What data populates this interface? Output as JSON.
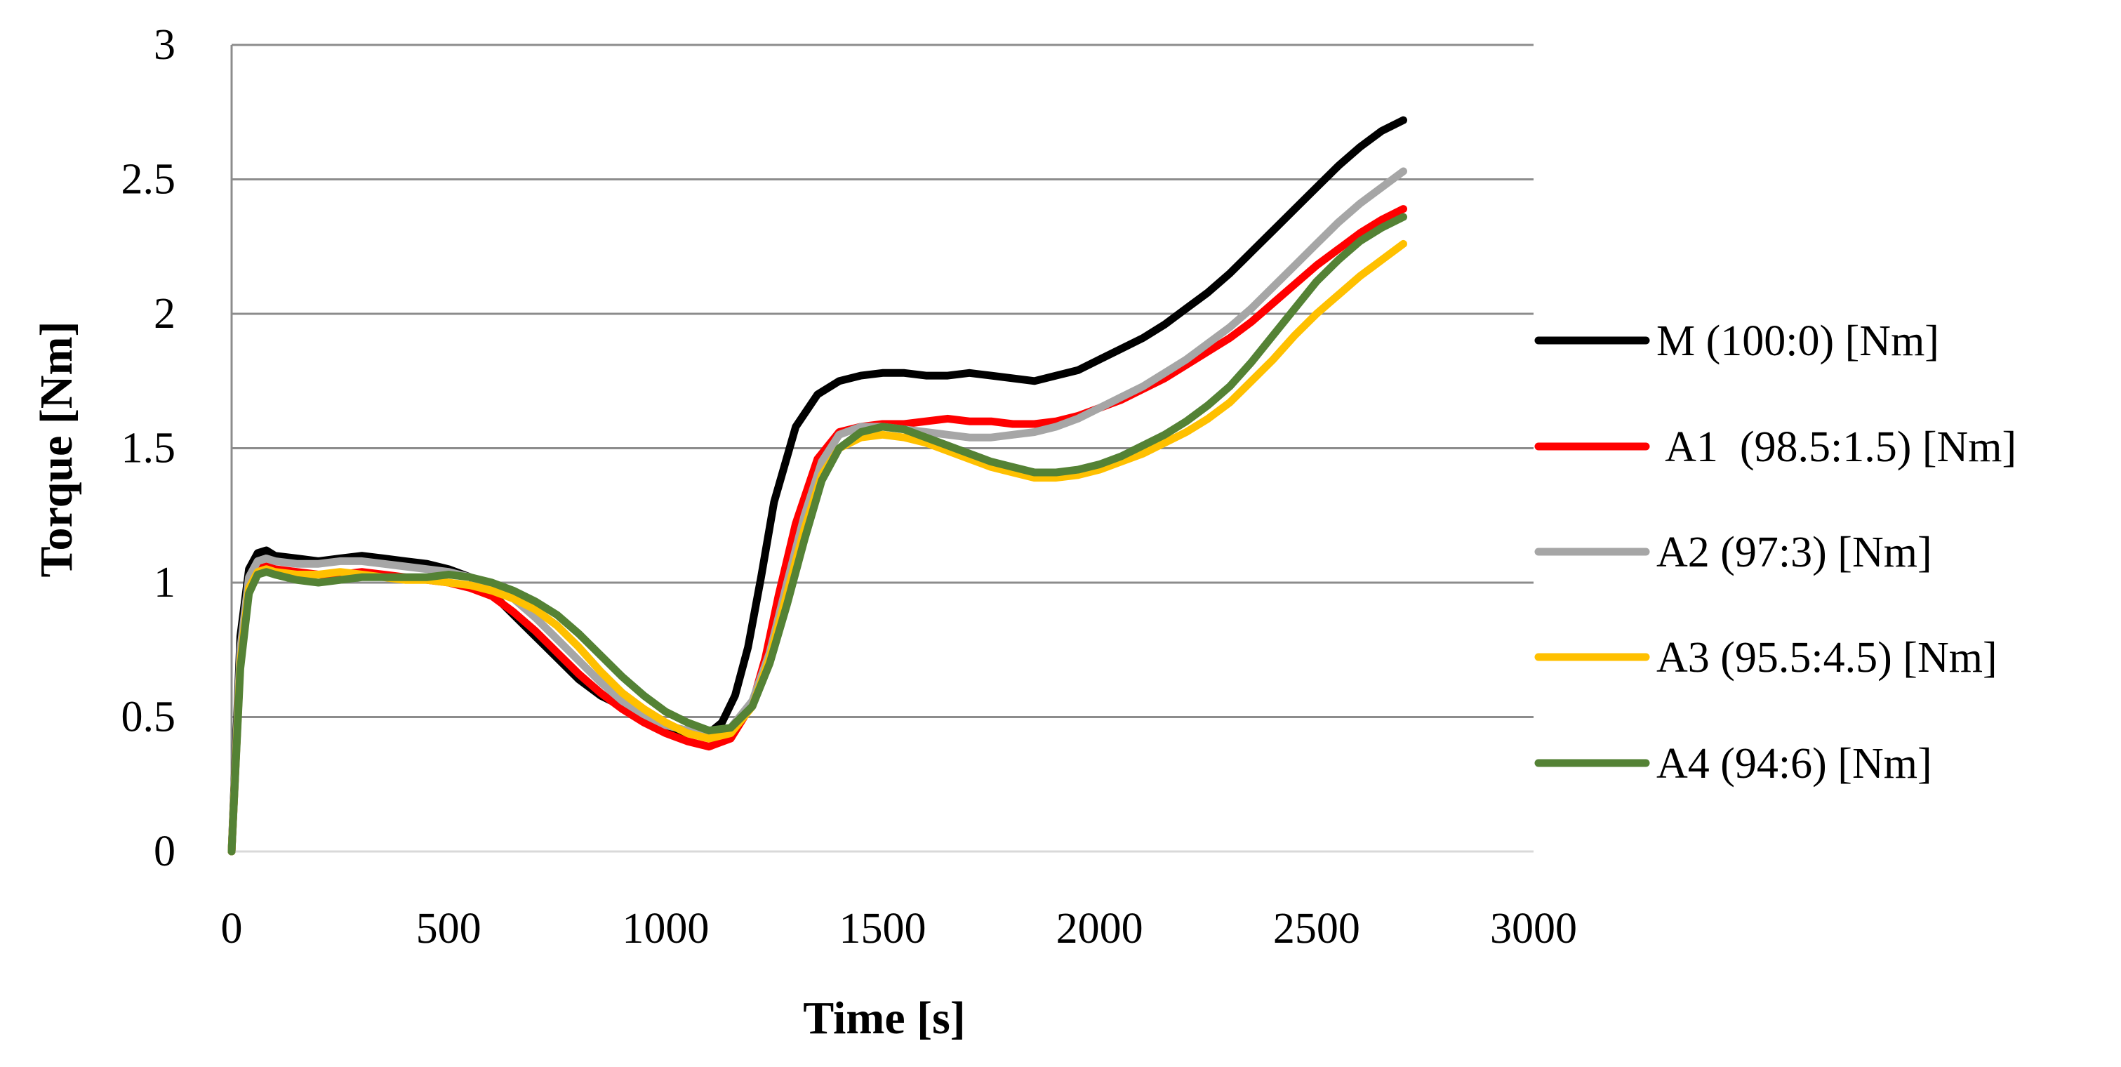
{
  "chart_data": {
    "type": "line",
    "title": "",
    "xlabel": "Time [s]",
    "ylabel": "Torque [Nm]",
    "xlim": [
      0,
      3000
    ],
    "ylim": [
      0,
      3
    ],
    "xticks": [
      0,
      500,
      1000,
      1500,
      2000,
      2500,
      3000
    ],
    "yticks": [
      0,
      0.5,
      1,
      1.5,
      2,
      2.5,
      3
    ],
    "xtick_labels": [
      "0",
      "500",
      "1000",
      "1500",
      "2000",
      "2500",
      "3000"
    ],
    "ytick_labels": [
      "0",
      "0.5",
      "1",
      "1.5",
      "2",
      "2.5",
      "3"
    ],
    "grid": "horizontal",
    "legend_position": "right",
    "series": [
      {
        "name": "M (100:0) [Nm]",
        "legend_label": "M (100:0) [Nm]",
        "color": "#000000",
        "x": [
          0,
          20,
          40,
          60,
          80,
          100,
          150,
          200,
          250,
          300,
          350,
          400,
          450,
          500,
          550,
          600,
          650,
          700,
          750,
          800,
          850,
          900,
          950,
          1000,
          1050,
          1100,
          1130,
          1160,
          1190,
          1220,
          1250,
          1300,
          1350,
          1400,
          1450,
          1500,
          1550,
          1600,
          1650,
          1700,
          1750,
          1800,
          1850,
          1900,
          1950,
          2000,
          2050,
          2100,
          2150,
          2200,
          2250,
          2300,
          2350,
          2400,
          2450,
          2500,
          2550,
          2600,
          2650,
          2700
        ],
        "values": [
          0,
          0.8,
          1.05,
          1.11,
          1.12,
          1.1,
          1.09,
          1.08,
          1.09,
          1.1,
          1.09,
          1.08,
          1.07,
          1.05,
          1.02,
          0.96,
          0.88,
          0.8,
          0.72,
          0.64,
          0.58,
          0.54,
          0.5,
          0.46,
          0.44,
          0.44,
          0.48,
          0.58,
          0.76,
          1.02,
          1.3,
          1.58,
          1.7,
          1.75,
          1.77,
          1.78,
          1.78,
          1.77,
          1.77,
          1.78,
          1.77,
          1.76,
          1.75,
          1.77,
          1.79,
          1.83,
          1.87,
          1.91,
          1.96,
          2.02,
          2.08,
          2.15,
          2.23,
          2.31,
          2.39,
          2.47,
          2.55,
          2.62,
          2.68,
          2.72
        ]
      },
      {
        "name": "A1 (98.5:1.5) [Nm]",
        "legend_label": " A1  (98.5:1.5) [Nm]",
        "color": "#ff0000",
        "x": [
          0,
          20,
          40,
          60,
          80,
          100,
          150,
          200,
          250,
          300,
          350,
          400,
          450,
          500,
          550,
          600,
          650,
          700,
          750,
          800,
          850,
          900,
          950,
          1000,
          1050,
          1100,
          1150,
          1200,
          1230,
          1260,
          1300,
          1350,
          1400,
          1450,
          1500,
          1550,
          1600,
          1650,
          1700,
          1750,
          1800,
          1850,
          1900,
          1950,
          2000,
          2050,
          2100,
          2150,
          2200,
          2250,
          2300,
          2350,
          2400,
          2450,
          2500,
          2550,
          2600,
          2650,
          2700
        ],
        "values": [
          0,
          0.7,
          0.98,
          1.05,
          1.06,
          1.05,
          1.04,
          1.03,
          1.03,
          1.04,
          1.03,
          1.02,
          1.01,
          1.0,
          0.98,
          0.95,
          0.89,
          0.82,
          0.74,
          0.66,
          0.59,
          0.53,
          0.48,
          0.44,
          0.41,
          0.39,
          0.42,
          0.55,
          0.72,
          0.95,
          1.22,
          1.46,
          1.56,
          1.58,
          1.59,
          1.59,
          1.6,
          1.61,
          1.6,
          1.6,
          1.59,
          1.59,
          1.6,
          1.62,
          1.65,
          1.68,
          1.72,
          1.76,
          1.81,
          1.86,
          1.91,
          1.97,
          2.04,
          2.11,
          2.18,
          2.24,
          2.3,
          2.35,
          2.39
        ]
      },
      {
        "name": "A2 (97:3) [Nm]",
        "legend_label": "A2 (97:3) [Nm]",
        "color": "#a6a6a6",
        "x": [
          0,
          20,
          40,
          60,
          80,
          100,
          150,
          200,
          250,
          300,
          350,
          400,
          450,
          500,
          550,
          600,
          650,
          700,
          750,
          800,
          850,
          900,
          950,
          1000,
          1050,
          1100,
          1150,
          1200,
          1240,
          1280,
          1320,
          1360,
          1400,
          1450,
          1500,
          1550,
          1600,
          1650,
          1700,
          1750,
          1800,
          1850,
          1900,
          1950,
          2000,
          2050,
          2100,
          2150,
          2200,
          2250,
          2300,
          2350,
          2400,
          2450,
          2500,
          2550,
          2600,
          2650,
          2700
        ],
        "values": [
          0,
          0.75,
          1.02,
          1.08,
          1.09,
          1.08,
          1.07,
          1.07,
          1.08,
          1.08,
          1.07,
          1.06,
          1.05,
          1.04,
          1.02,
          0.99,
          0.94,
          0.87,
          0.79,
          0.71,
          0.63,
          0.56,
          0.51,
          0.47,
          0.45,
          0.44,
          0.46,
          0.56,
          0.74,
          1.0,
          1.25,
          1.45,
          1.55,
          1.58,
          1.58,
          1.57,
          1.56,
          1.55,
          1.54,
          1.54,
          1.55,
          1.56,
          1.58,
          1.61,
          1.65,
          1.69,
          1.73,
          1.78,
          1.83,
          1.89,
          1.95,
          2.02,
          2.1,
          2.18,
          2.26,
          2.34,
          2.41,
          2.47,
          2.53
        ]
      },
      {
        "name": "A3 (95.5:4.5) [Nm]",
        "legend_label": "A3 (95.5:4.5) [Nm]",
        "color": "#ffc000",
        "x": [
          0,
          20,
          40,
          60,
          80,
          100,
          150,
          200,
          250,
          300,
          350,
          400,
          450,
          500,
          550,
          600,
          650,
          700,
          750,
          800,
          850,
          900,
          950,
          1000,
          1050,
          1100,
          1150,
          1200,
          1240,
          1280,
          1320,
          1360,
          1400,
          1450,
          1500,
          1550,
          1600,
          1650,
          1700,
          1750,
          1800,
          1850,
          1900,
          1950,
          2000,
          2050,
          2100,
          2150,
          2200,
          2250,
          2300,
          2350,
          2400,
          2450,
          2500,
          2550,
          2600,
          2650,
          2700
        ],
        "values": [
          0,
          0.7,
          0.98,
          1.04,
          1.05,
          1.04,
          1.03,
          1.03,
          1.04,
          1.03,
          1.02,
          1.01,
          1.01,
          1.0,
          0.99,
          0.97,
          0.94,
          0.9,
          0.84,
          0.76,
          0.67,
          0.59,
          0.53,
          0.48,
          0.44,
          0.42,
          0.44,
          0.54,
          0.72,
          0.96,
          1.2,
          1.4,
          1.5,
          1.54,
          1.55,
          1.54,
          1.52,
          1.49,
          1.46,
          1.43,
          1.41,
          1.39,
          1.39,
          1.4,
          1.42,
          1.45,
          1.48,
          1.52,
          1.56,
          1.61,
          1.67,
          1.75,
          1.83,
          1.92,
          2.0,
          2.07,
          2.14,
          2.2,
          2.26
        ]
      },
      {
        "name": "A4 (94:6) [Nm]",
        "legend_label": "A4 (94:6) [Nm]",
        "color": "#548235",
        "x": [
          0,
          20,
          40,
          60,
          80,
          100,
          150,
          200,
          250,
          300,
          350,
          400,
          450,
          500,
          550,
          600,
          650,
          700,
          750,
          800,
          850,
          900,
          950,
          1000,
          1050,
          1100,
          1150,
          1200,
          1240,
          1280,
          1320,
          1360,
          1400,
          1450,
          1500,
          1550,
          1600,
          1650,
          1700,
          1750,
          1800,
          1850,
          1900,
          1950,
          2000,
          2050,
          2100,
          2150,
          2200,
          2250,
          2300,
          2350,
          2400,
          2450,
          2500,
          2550,
          2600,
          2650,
          2700
        ],
        "values": [
          0,
          0.68,
          0.96,
          1.03,
          1.04,
          1.03,
          1.01,
          1.0,
          1.01,
          1.02,
          1.02,
          1.02,
          1.02,
          1.03,
          1.02,
          1.0,
          0.97,
          0.93,
          0.88,
          0.81,
          0.73,
          0.65,
          0.58,
          0.52,
          0.48,
          0.45,
          0.46,
          0.54,
          0.7,
          0.92,
          1.16,
          1.38,
          1.5,
          1.56,
          1.58,
          1.57,
          1.54,
          1.51,
          1.48,
          1.45,
          1.43,
          1.41,
          1.41,
          1.42,
          1.44,
          1.47,
          1.51,
          1.55,
          1.6,
          1.66,
          1.73,
          1.82,
          1.92,
          2.02,
          2.12,
          2.2,
          2.27,
          2.32,
          2.36
        ]
      }
    ]
  }
}
